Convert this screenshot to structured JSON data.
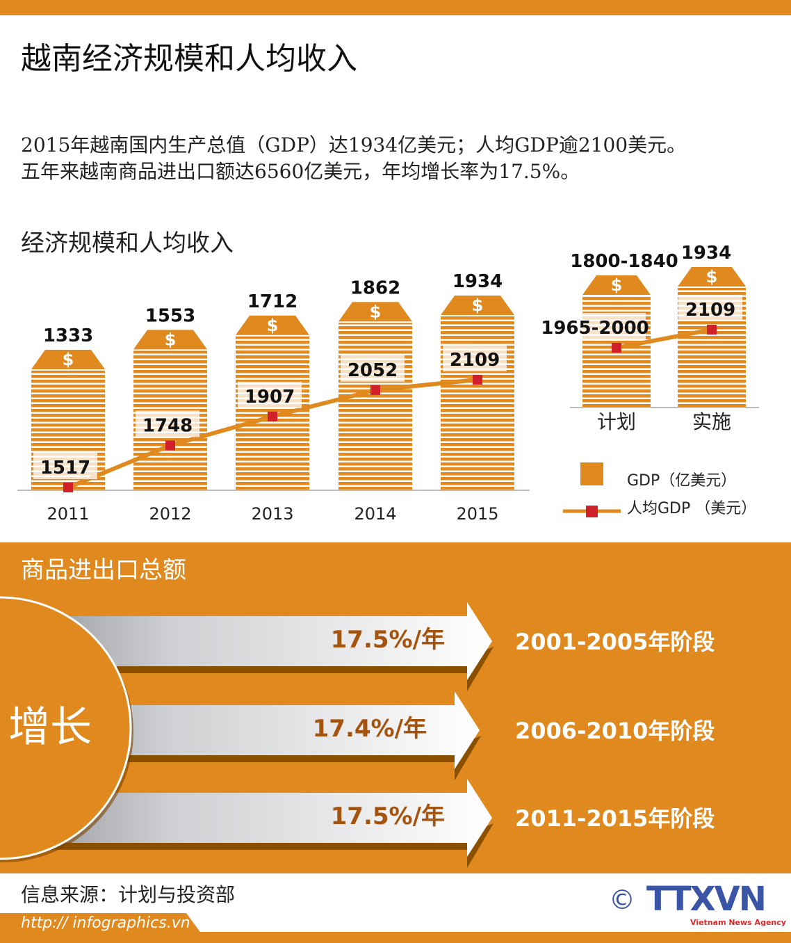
{
  "colors": {
    "accent": "#e0891e",
    "shadow": "#8a5000",
    "marker": "#d0202a",
    "rate_text": "#a55410",
    "logo_blue": "#3a55a5",
    "logo_red": "#d92a2a"
  },
  "header": {
    "title": "越南经济规模和人均收入"
  },
  "intro": {
    "line1": "2015年越南国内生产总值（GDP）达1934亿美元；人均GDP逾2100美元。",
    "line2": "五年来越南商品进出口额达6560亿美元，年均增长率为17.5%。"
  },
  "chart_title": "经济规模和人均收入",
  "chart_data": [
    {
      "type": "bar+line",
      "categories": [
        "2011",
        "2012",
        "2013",
        "2014",
        "2015"
      ],
      "series": [
        {
          "name": "GDP（亿美元）",
          "type": "bar",
          "values": [
            1333,
            1553,
            1712,
            1862,
            1934
          ]
        },
        {
          "name": "人均GDP （美元）",
          "type": "line",
          "values": [
            1517,
            1748,
            1907,
            2052,
            2109
          ]
        }
      ]
    },
    {
      "type": "bar+line",
      "categories": [
        "计划",
        "实施"
      ],
      "series": [
        {
          "name": "GDP（亿美元）",
          "type": "bar",
          "values": [
            1840,
            1934
          ],
          "labels": [
            "1800-1840",
            "1934"
          ]
        },
        {
          "name": "人均GDP （美元）",
          "type": "line",
          "values": [
            2000,
            2109
          ],
          "labels": [
            "1965-2000",
            "2109"
          ]
        }
      ]
    }
  ],
  "legend": {
    "gdp": "GDP（亿美元）",
    "per_capita": "人均GDP （美元）",
    "placement": "bottom-right"
  },
  "trade": {
    "heading": "商品进出口总额",
    "circle_label": "增长",
    "rows": [
      {
        "rate": "17.5%/年",
        "period": "2001-2005年阶段"
      },
      {
        "rate": "17.4%/年",
        "period": "2006-2010年阶段"
      },
      {
        "rate": "17.5%/年",
        "period": "2011-2015年阶段"
      }
    ]
  },
  "footer": {
    "source": "信息来源：计划与投资部",
    "url": "http:// infographics.vn",
    "copyright": "©",
    "logo": "TTXVN",
    "logo_sub": "Vietnam News Agency"
  }
}
